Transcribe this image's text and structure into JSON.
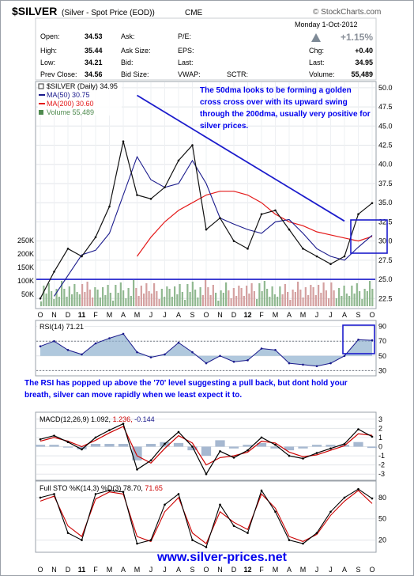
{
  "header": {
    "symbol": "$SILVER",
    "description": "(Silver - Spot Price (EOD))",
    "exchange": "CME",
    "provider": "© StockCharts.com",
    "date": "Monday  1-Oct-2012",
    "change_pct": "+1.15%"
  },
  "quote": {
    "open_label": "Open:",
    "open": "34.53",
    "high_label": "High:",
    "high": "35.44",
    "low_label": "Low:",
    "low": "34.21",
    "prev_label": "Prev Close:",
    "prev": "34.56",
    "ask_label": "Ask:",
    "ask_size_label": "Ask Size:",
    "bid_label": "Bid:",
    "bid_size_label": "Bid Size:",
    "pe_label": "P/E:",
    "eps_label": "EPS:",
    "last_label": "Last:",
    "vwap_label": "VWAP:",
    "sctr_label": "SCTR:",
    "chg_label": "Chg:",
    "chg": "+0.40",
    "last2_label": "Last:",
    "last2": "34.95",
    "volume_label": "Volume:",
    "volume": "55,489"
  },
  "legend": {
    "price": "$SILVER (Daily) 34.95",
    "ma50": "MA(50) 30.75",
    "ma200": "MA(200) 30.60",
    "volume": "Volume 55,489"
  },
  "annotations": {
    "golden_cross": "The 50dma looks to be forming a golden cross cross over with its upward swing through the 200dma, usually very positive for silver prices.",
    "rsi": "The RSI has popped up above the '70' level suggesting a pull back, but dont hold your breath, silver can move rapidly when we least expect it to."
  },
  "rsi_panel": {
    "label": "RSI(14) 71.21"
  },
  "macd_panel": {
    "label_base": "MACD(12,26,9) 1.092,",
    "label_signal": "1.236,",
    "label_hist": "-0.144"
  },
  "sto_panel": {
    "label_base": "Full STO %K(14,3) %D(3) 78.70,",
    "label_d": "71.65"
  },
  "x_axis_labels": [
    "O",
    "N",
    "D",
    "11",
    "F",
    "M",
    "A",
    "M",
    "J",
    "J",
    "A",
    "S",
    "O",
    "N",
    "D",
    "12",
    "F",
    "M",
    "A",
    "M",
    "J",
    "J",
    "A",
    "S",
    "O"
  ],
  "footer": {
    "url": "www.silver-prices.net"
  },
  "colors": {
    "price": "#111111",
    "down": "#cc0000",
    "ma50": "#1a1a8c",
    "ma200": "#e41a1a",
    "up_vol": "#90b890",
    "down_vol": "#d4a0a0",
    "annotation": "#0000ee",
    "blue_line": "#1c1ccc",
    "rsi": "#1a1a8c",
    "rsi_fill": "#8fb0cf",
    "macd": "#000000",
    "signal": "#cc0000",
    "hist": "#a6b8d0"
  },
  "chart_data": [
    {
      "type": "line",
      "title": "$SILVER (Silver - Spot Price (EOD)) CME",
      "x": [
        "Oct-10",
        "Nov-10",
        "Dec-10",
        "Jan-11",
        "Feb-11",
        "Mar-11",
        "Apr-11",
        "May-11",
        "Jun-11",
        "Jul-11",
        "Aug-11",
        "Sep-11",
        "Oct-11",
        "Nov-11",
        "Dec-11",
        "Jan-12",
        "Feb-12",
        "Mar-12",
        "Apr-12",
        "May-12",
        "Jun-12",
        "Jul-12",
        "Aug-12",
        "Sep-12",
        "Oct-12"
      ],
      "ylim": [
        21.5,
        50.5
      ],
      "y_ticks": [
        22.5,
        25.0,
        27.5,
        30.0,
        32.5,
        35.0,
        37.5,
        40.0,
        42.5,
        45.0,
        47.5,
        50.0
      ],
      "volume_ticks": [
        "250K",
        "200K",
        "150K",
        "100K",
        "50K"
      ],
      "horizontal_line": 25.0,
      "trendline": {
        "from": [
          "May-11",
          49.0
        ],
        "to": [
          "Aug-12",
          32.6
        ]
      },
      "series": [
        {
          "name": "$SILVER (Daily) 34.95",
          "values": [
            22.5,
            26.0,
            29.0,
            28.0,
            30.5,
            34.5,
            43.0,
            36.0,
            35.5,
            37.0,
            40.5,
            42.5,
            31.5,
            33.0,
            30.0,
            29.0,
            33.5,
            34.0,
            31.5,
            29.0,
            28.0,
            27.0,
            28.0,
            33.5,
            34.95
          ]
        },
        {
          "name": "MA(50) 30.75",
          "values": [
            null,
            22.8,
            25.5,
            28.2,
            28.8,
            31.0,
            36.0,
            41.0,
            38.0,
            37.0,
            37.5,
            40.5,
            37.5,
            33.0,
            32.2,
            31.5,
            31.0,
            32.5,
            32.8,
            31.0,
            29.0,
            28.0,
            27.5,
            29.2,
            30.75
          ]
        },
        {
          "name": "MA(200) 30.60",
          "values": [
            null,
            null,
            null,
            null,
            null,
            null,
            null,
            28.0,
            30.5,
            32.5,
            34.0,
            35.0,
            36.0,
            36.5,
            36.5,
            36.0,
            35.0,
            33.5,
            32.5,
            32.0,
            31.2,
            30.8,
            30.4,
            30.0,
            30.6
          ]
        }
      ]
    },
    {
      "type": "line",
      "title": "RSI(14) 71.21",
      "ylim": [
        25,
        95
      ],
      "y_ticks": [
        30,
        50,
        70,
        90
      ],
      "reference_lines": [
        30,
        70
      ],
      "series": [
        {
          "name": "RSI(14)",
          "values": [
            63,
            70,
            58,
            52,
            67,
            74,
            80,
            55,
            48,
            52,
            68,
            55,
            40,
            50,
            42,
            44,
            60,
            58,
            40,
            38,
            36,
            40,
            50,
            72,
            71.21
          ]
        }
      ]
    },
    {
      "type": "line",
      "title": "MACD(12,26,9) 1.092, 1.236, -0.144",
      "ylim": [
        -3.5,
        3.5
      ],
      "y_ticks": [
        -3,
        -2,
        -1,
        0,
        1,
        2,
        3
      ],
      "series": [
        {
          "name": "MACD",
          "values": [
            0.8,
            1.2,
            0.5,
            -0.3,
            1.0,
            1.8,
            2.5,
            -2.5,
            -1.5,
            0.3,
            1.6,
            0.0,
            -3.0,
            -0.5,
            -1.2,
            -0.4,
            1.0,
            0.2,
            -1.0,
            -1.3,
            -0.7,
            -0.2,
            0.3,
            1.9,
            1.092
          ]
        },
        {
          "name": "Signal",
          "values": [
            0.6,
            1.0,
            0.6,
            0.0,
            0.7,
            1.5,
            2.2,
            -1.0,
            -1.8,
            -0.2,
            1.2,
            0.4,
            -2.0,
            -1.2,
            -1.0,
            -0.6,
            0.6,
            0.4,
            -0.6,
            -1.1,
            -0.9,
            -0.4,
            0.1,
            1.4,
            1.236
          ]
        },
        {
          "name": "Histogram",
          "values": [
            0.2,
            0.2,
            -0.1,
            -0.3,
            0.3,
            0.3,
            0.3,
            -1.5,
            0.3,
            0.5,
            0.4,
            -0.4,
            -1.0,
            0.7,
            -0.2,
            0.2,
            0.4,
            -0.2,
            -0.4,
            -0.2,
            0.2,
            0.2,
            0.2,
            0.5,
            -0.144
          ]
        }
      ]
    },
    {
      "type": "line",
      "title": "Full STO %K(14,3) %D(3) 78.70, 71.65",
      "ylim": [
        5,
        100
      ],
      "y_ticks": [
        20,
        50,
        80
      ],
      "series": [
        {
          "name": "%K",
          "values": [
            80,
            85,
            30,
            20,
            85,
            90,
            88,
            15,
            20,
            70,
            85,
            20,
            10,
            70,
            40,
            30,
            90,
            60,
            20,
            15,
            30,
            60,
            80,
            92,
            78.7
          ]
        },
        {
          "name": "%D",
          "values": [
            75,
            82,
            40,
            25,
            78,
            88,
            85,
            25,
            18,
            60,
            80,
            30,
            15,
            60,
            45,
            35,
            85,
            65,
            25,
            18,
            28,
            55,
            75,
            90,
            71.65
          ]
        }
      ]
    }
  ]
}
